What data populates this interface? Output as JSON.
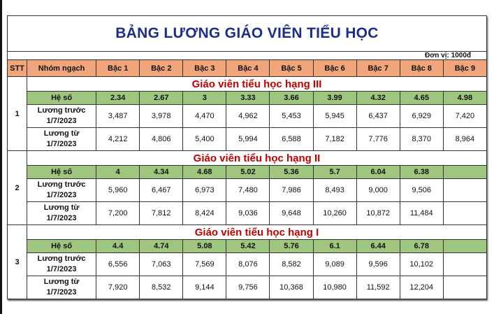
{
  "title": "BẢNG LƯƠNG GIÁO VIÊN TIỂU HỌC",
  "unit": "Đơn vị: 1000đ",
  "headers": [
    "STT",
    "Nhóm ngạch",
    "Bậc 1",
    "Bậc 2",
    "Bậc 3",
    "Bậc 4",
    "Bậc 5",
    "Bậc 6",
    "Bậc 7",
    "Bậc 8",
    "Bậc 9"
  ],
  "colors": {
    "title": "#1c2e8c",
    "group_title": "#c00000",
    "header_bg": "#f1a57a",
    "coef_bg": "#9fc67e"
  },
  "groups": [
    {
      "stt": "1",
      "name": "Giáo viên tiểu học hạng III",
      "rows": [
        {
          "label": "Hệ số",
          "values": [
            "2.34",
            "2.67",
            "3",
            "3.33",
            "3.66",
            "3.99",
            "4.32",
            "4.65",
            "4.98"
          ]
        },
        {
          "label": "Lương trước 1/7/2023",
          "values": [
            "3,487",
            "3,978",
            "4,470",
            "4,962",
            "5,453",
            "5,945",
            "6,437",
            "6,929",
            "7,420"
          ]
        },
        {
          "label": "Lương từ 1/7/2023",
          "values": [
            "4,212",
            "4,806",
            "5,400",
            "5,994",
            "6,588",
            "7,182",
            "7,776",
            "8,370",
            "8,964"
          ]
        }
      ]
    },
    {
      "stt": "2",
      "name": "Giáo viên tiểu học hạng II",
      "rows": [
        {
          "label": "Hệ số",
          "values": [
            "4",
            "4.34",
            "4.68",
            "5.02",
            "5.36",
            "5.7",
            "6.04",
            "6.38",
            ""
          ]
        },
        {
          "label": "Lương trước 1/7/2023",
          "values": [
            "5,960",
            "6,467",
            "6,973",
            "7,480",
            "7,986",
            "8,493",
            "9,000",
            "9,506",
            ""
          ]
        },
        {
          "label": "Lương từ 1/7/2023",
          "values": [
            "7,200",
            "7,812",
            "8,424",
            "9,036",
            "9,648",
            "10,260",
            "10,872",
            "11,484",
            ""
          ]
        }
      ]
    },
    {
      "stt": "3",
      "name": "Giáo viên tiểu học hạng I",
      "rows": [
        {
          "label": "Hệ số",
          "values": [
            "4.4",
            "4.74",
            "5.08",
            "5.42",
            "5.76",
            "6.1",
            "6.44",
            "6.78",
            ""
          ]
        },
        {
          "label": "Lương trước 1/7/2023",
          "values": [
            "6,556",
            "7,063",
            "7,569",
            "8,076",
            "8,582",
            "9,089",
            "9,596",
            "10,102",
            ""
          ]
        },
        {
          "label": "Lương từ 1/7/2023",
          "values": [
            "7,920",
            "8,532",
            "9,144",
            "9,756",
            "10,368",
            "10,980",
            "11,592",
            "12,204",
            ""
          ]
        }
      ]
    }
  ]
}
